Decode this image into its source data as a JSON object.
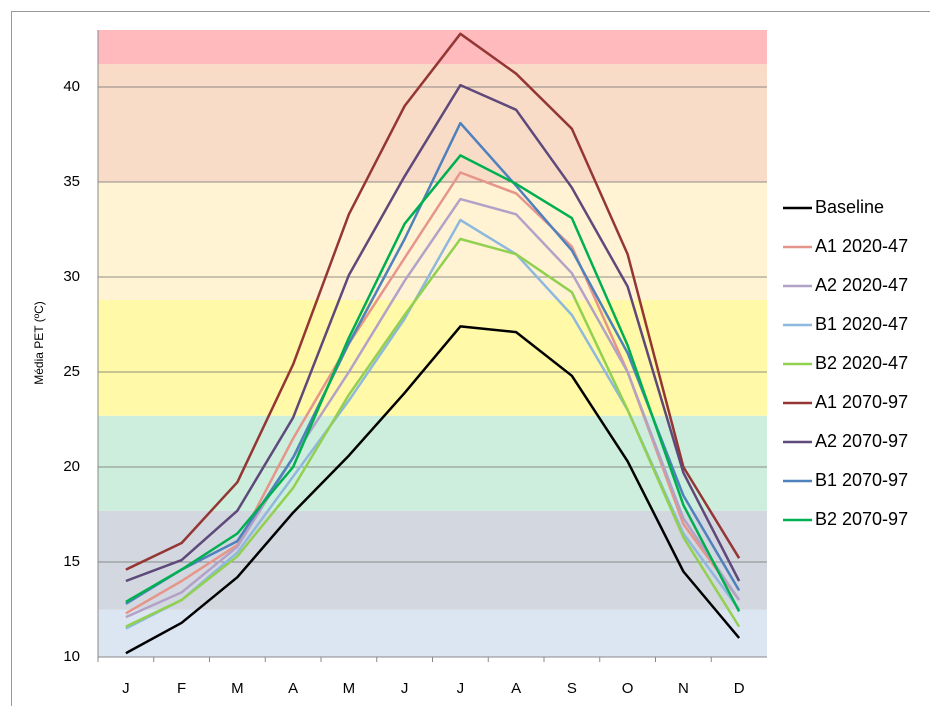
{
  "chart_data": {
    "type": "line",
    "y_label": "Média PET (ºC)",
    "categories": [
      "J",
      "F",
      "M",
      "A",
      "M",
      "J",
      "J",
      "A",
      "S",
      "O",
      "N",
      "D"
    ],
    "ylim": [
      10,
      43
    ],
    "yticks": [
      10,
      15,
      20,
      25,
      30,
      35,
      40
    ],
    "grid": true,
    "legend": "right",
    "bands": [
      {
        "from": 10,
        "to": 12.5,
        "color": "#dce6f2"
      },
      {
        "from": 12.5,
        "to": 17.7,
        "color": "#d3d7df"
      },
      {
        "from": 17.7,
        "to": 22.7,
        "color": "#cdeedc"
      },
      {
        "from": 22.7,
        "to": 28.8,
        "color": "#fff9a8"
      },
      {
        "from": 28.8,
        "to": 35,
        "color": "#fff3d4"
      },
      {
        "from": 35,
        "to": 41.2,
        "color": "#f8dcc8"
      },
      {
        "from": 41.2,
        "to": 43,
        "color": "#ffbabd"
      }
    ],
    "series": [
      {
        "name": "Baseline",
        "color": "#000000",
        "values": [
          10.2,
          11.8,
          14.2,
          17.6,
          20.6,
          23.9,
          27.4,
          27.1,
          24.8,
          20.3,
          14.5,
          11.0
        ]
      },
      {
        "name": "A1 2020-47",
        "color": "#e6958a",
        "values": [
          12.3,
          14.0,
          15.9,
          21.5,
          26.5,
          31.0,
          35.5,
          34.4,
          31.6,
          25.0,
          17.0,
          13.0
        ]
      },
      {
        "name": "A2 2020-47",
        "color": "#b3a2c7",
        "values": [
          12.1,
          13.4,
          15.8,
          20.5,
          25.0,
          29.8,
          34.1,
          33.3,
          30.2,
          25.0,
          17.3,
          13.0
        ]
      },
      {
        "name": "B1 2020-47",
        "color": "#8fb8de",
        "values": [
          11.5,
          13.0,
          15.5,
          19.5,
          23.5,
          27.8,
          33.0,
          31.2,
          28.0,
          23.0,
          16.5,
          12.5
        ]
      },
      {
        "name": "B2 2020-47",
        "color": "#92d050",
        "values": [
          11.6,
          13.0,
          15.3,
          18.9,
          23.8,
          28.0,
          32.0,
          31.2,
          29.2,
          23.0,
          16.3,
          11.6
        ]
      },
      {
        "name": "A1 2070-97",
        "color": "#943634",
        "values": [
          14.6,
          16.0,
          19.2,
          25.4,
          33.3,
          39.0,
          42.8,
          40.7,
          37.8,
          31.2,
          20.0,
          15.2
        ]
      },
      {
        "name": "A2 2070-97",
        "color": "#5f497a",
        "values": [
          14.0,
          15.1,
          17.7,
          22.6,
          30.1,
          35.3,
          40.1,
          38.8,
          34.7,
          29.5,
          19.7,
          14.0
        ]
      },
      {
        "name": "B1 2070-97",
        "color": "#4f81bd",
        "values": [
          12.8,
          14.6,
          16.1,
          20.5,
          26.5,
          32.0,
          38.1,
          34.8,
          31.4,
          26.0,
          18.5,
          13.5
        ]
      },
      {
        "name": "B2 2070-97",
        "color": "#00b050",
        "values": [
          12.9,
          14.6,
          16.5,
          20.0,
          26.8,
          32.8,
          36.4,
          34.9,
          33.1,
          26.4,
          18.0,
          12.4
        ]
      }
    ]
  }
}
